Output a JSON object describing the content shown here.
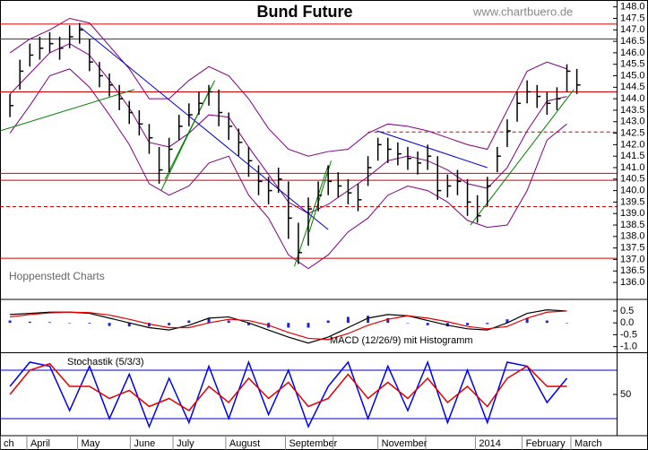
{
  "chart_data": [
    {
      "type": "hlc",
      "title": "Bund Future",
      "source": "www.chartbuero.de",
      "watermark": "Hoppenstedt Charts",
      "xlim": [
        -1,
        61
      ],
      "ylim": [
        135.3,
        148.3
      ],
      "color": "#000000",
      "x": [
        0,
        1,
        2,
        3,
        4,
        5,
        6,
        7,
        8,
        9,
        10,
        11,
        12,
        13,
        14,
        15,
        16,
        17,
        18,
        19,
        20,
        21,
        22,
        23,
        24,
        25,
        26,
        27,
        28,
        29,
        30,
        31,
        32,
        33,
        34,
        35,
        36,
        37,
        38,
        39,
        40,
        41,
        42,
        43,
        44,
        45,
        46,
        47,
        48,
        49,
        50,
        51,
        52,
        53,
        54,
        55,
        56,
        57
      ],
      "high": [
        144.2,
        145.7,
        146.4,
        146.7,
        146.9,
        146.7,
        147.2,
        147.3,
        146.6,
        145.6,
        145.1,
        144.6,
        143.9,
        143.5,
        142.9,
        141.9,
        142.3,
        143.3,
        143.8,
        144.3,
        144.6,
        144.4,
        143.4,
        142.7,
        141.9,
        141.1,
        140.6,
        141.0,
        140.4,
        138.6,
        139.7,
        140.4,
        141.1,
        140.8,
        140.5,
        140.3,
        141.5,
        142.3,
        142.3,
        142.1,
        141.9,
        141.7,
        142.0,
        141.5,
        140.7,
        140.9,
        140.5,
        139.8,
        140.6,
        141.9,
        143.1,
        144.3,
        144.8,
        144.6,
        144.3,
        144.5,
        145.5,
        145.3
      ],
      "low": [
        143.2,
        144.4,
        145.4,
        145.7,
        146.0,
        145.7,
        146.2,
        146.4,
        145.2,
        144.5,
        144.1,
        143.5,
        142.9,
        142.4,
        141.6,
        140.3,
        140.8,
        142.2,
        142.8,
        143.3,
        143.7,
        142.8,
        142.2,
        141.5,
        140.6,
        139.8,
        139.4,
        139.9,
        137.9,
        136.8,
        137.6,
        139.1,
        139.8,
        139.7,
        139.4,
        139.1,
        140.2,
        141.3,
        141.2,
        141.1,
        140.9,
        140.7,
        140.9,
        139.6,
        139.7,
        139.8,
        138.9,
        138.6,
        139.3,
        140.8,
        141.9,
        143.0,
        143.8,
        143.6,
        143.3,
        143.5,
        144.3,
        144.2
      ],
      "close": [
        143.7,
        145.2,
        145.9,
        146.2,
        146.4,
        146.2,
        146.7,
        147.0,
        145.6,
        145.0,
        144.6,
        144.0,
        143.4,
        142.9,
        142.3,
        140.9,
        141.8,
        142.8,
        143.3,
        143.8,
        144.3,
        143.4,
        142.8,
        142.1,
        141.3,
        140.4,
        140.0,
        140.5,
        138.8,
        137.3,
        139.2,
        139.8,
        140.4,
        140.2,
        139.9,
        139.6,
        141.0,
        142.0,
        141.8,
        141.6,
        141.4,
        141.2,
        141.5,
        140.0,
        140.2,
        140.4,
        139.5,
        138.9,
        140.2,
        141.5,
        142.6,
        143.8,
        144.3,
        144.1,
        143.8,
        144.0,
        145.2,
        144.6
      ],
      "bands": {
        "color": "#800080",
        "x": [
          0,
          2,
          4,
          6,
          8,
          10,
          12,
          14,
          16,
          18,
          20,
          22,
          24,
          26,
          28,
          30,
          32,
          34,
          36,
          38,
          40,
          42,
          44,
          46,
          48,
          50,
          52,
          54,
          56
        ],
        "upper": [
          146.0,
          146.6,
          147.0,
          147.5,
          147.3,
          146.3,
          145.3,
          144.0,
          144.0,
          144.8,
          145.4,
          145.0,
          144.0,
          142.7,
          141.8,
          141.5,
          141.7,
          141.8,
          142.5,
          142.9,
          142.8,
          142.6,
          142.3,
          142.0,
          141.8,
          143.5,
          145.2,
          145.6,
          145.3
        ],
        "middle": [
          144.2,
          145.1,
          146.0,
          146.4,
          145.9,
          144.8,
          143.6,
          142.1,
          141.9,
          142.5,
          143.3,
          143.2,
          141.9,
          140.7,
          139.5,
          139.0,
          139.4,
          140.0,
          140.6,
          141.3,
          141.5,
          141.3,
          140.9,
          140.3,
          140.1,
          141.0,
          142.6,
          143.9,
          144.1
        ],
        "lower": [
          142.5,
          143.7,
          145.0,
          145.3,
          144.5,
          143.3,
          142.0,
          140.3,
          139.8,
          140.2,
          141.2,
          141.5,
          139.8,
          138.8,
          137.2,
          136.6,
          137.2,
          138.2,
          138.8,
          139.8,
          140.2,
          140.0,
          139.5,
          138.7,
          138.4,
          138.5,
          140.0,
          142.2,
          142.9
        ]
      },
      "hlines": {
        "color": "#d00000",
        "solid": [
          147.25,
          146.6,
          144.3,
          140.75,
          140.45,
          137.05
        ],
        "dashed": [
          {
            "value": 142.55,
            "x": [
              36,
              61
            ]
          },
          {
            "value": 139.3,
            "x": [
              -1,
              61
            ]
          }
        ]
      },
      "trendlines": [
        {
          "color": "#0000cc",
          "x": [
            7.1,
            32.0
          ],
          "y": [
            147.1,
            138.3
          ]
        },
        {
          "color": "#0000cc",
          "x": [
            36.9,
            48.0
          ],
          "y": [
            142.6,
            141.0
          ]
        },
        {
          "color": "#008000",
          "x": [
            -1,
            12.5
          ],
          "y": [
            142.6,
            144.4
          ]
        },
        {
          "color": "#008000",
          "x": [
            15.2,
            20.2
          ],
          "y": [
            140.0,
            144.5
          ]
        },
        {
          "color": "#008000",
          "x": [
            15.6,
            20.6
          ],
          "y": [
            140.5,
            144.8
          ]
        },
        {
          "color": "#008000",
          "x": [
            28.6,
            32.0
          ],
          "y": [
            136.7,
            141.1
          ]
        },
        {
          "color": "#008000",
          "x": [
            30.1,
            32.3
          ],
          "y": [
            138.2,
            141.3
          ]
        },
        {
          "color": "#008000",
          "x": [
            46.3,
            56.7
          ],
          "y": [
            138.5,
            144.4
          ]
        }
      ],
      "yticks": [
        {
          "value": 136,
          "label": "136.0"
        },
        {
          "value": 136.5,
          "label": "136.5"
        },
        {
          "value": 137,
          "label": "137.0"
        },
        {
          "value": 137.5,
          "label": "137.5"
        },
        {
          "value": 138,
          "label": "138.0"
        },
        {
          "value": 138.5,
          "label": "138.5"
        },
        {
          "value": 139,
          "label": "139.0"
        },
        {
          "value": 139.5,
          "label": "139.5"
        },
        {
          "value": 140,
          "label": "140.0"
        },
        {
          "value": 140.5,
          "label": "140.5"
        },
        {
          "value": 141,
          "label": "141.0"
        },
        {
          "value": 141.5,
          "label": "141.5"
        },
        {
          "value": 142,
          "label": "142.0"
        },
        {
          "value": 142.5,
          "label": "142.5"
        },
        {
          "value": 143,
          "label": "143.0"
        },
        {
          "value": 143.5,
          "label": "143.5"
        },
        {
          "value": 144,
          "label": "144.0"
        },
        {
          "value": 144.5,
          "label": "144.5"
        },
        {
          "value": 145,
          "label": "145.0"
        },
        {
          "value": 145.5,
          "label": "145.5"
        },
        {
          "value": 146,
          "label": "146.0"
        },
        {
          "value": 146.5,
          "label": "146.5"
        },
        {
          "value": 147,
          "label": "147.0"
        },
        {
          "value": 147.5,
          "label": "147.5"
        },
        {
          "value": 148,
          "label": "148.0"
        }
      ]
    },
    {
      "type": "macd",
      "title": "MACD (12/26/9) mit Histogramm",
      "xlim": [
        -1,
        61
      ],
      "ylim": [
        -1.2,
        0.95
      ],
      "x": [
        0,
        2,
        4,
        6,
        8,
        10,
        12,
        14,
        16,
        18,
        20,
        22,
        24,
        26,
        28,
        30,
        32,
        34,
        36,
        38,
        40,
        42,
        44,
        46,
        48,
        50,
        52,
        54,
        56
      ],
      "series": [
        {
          "color": "#000000",
          "values": [
            0.35,
            0.4,
            0.45,
            0.45,
            0.4,
            0.2,
            0.0,
            -0.2,
            -0.3,
            -0.1,
            0.2,
            0.25,
            0.0,
            -0.3,
            -0.6,
            -0.85,
            -0.6,
            -0.2,
            0.2,
            0.35,
            0.3,
            0.1,
            -0.1,
            -0.25,
            -0.3,
            0.0,
            0.4,
            0.55,
            0.5
          ]
        },
        {
          "color": "#e00000",
          "values": [
            0.25,
            0.35,
            0.42,
            0.45,
            0.43,
            0.33,
            0.15,
            -0.05,
            -0.2,
            -0.2,
            0.0,
            0.15,
            0.1,
            -0.1,
            -0.4,
            -0.65,
            -0.7,
            -0.45,
            -0.1,
            0.15,
            0.3,
            0.2,
            0.05,
            -0.15,
            -0.25,
            -0.15,
            0.2,
            0.45,
            0.5
          ]
        }
      ],
      "histogram": {
        "color": "#2222cc",
        "values": [
          0.1,
          0.05,
          0.03,
          0,
          -0.03,
          -0.13,
          -0.15,
          -0.15,
          -0.1,
          0.1,
          0.2,
          0.1,
          -0.1,
          -0.2,
          -0.2,
          -0.2,
          0.1,
          0.25,
          0.3,
          0.2,
          0,
          -0.1,
          -0.15,
          -0.1,
          -0.05,
          0.15,
          0.2,
          0.1,
          0
        ]
      },
      "yticks": [
        0.5,
        {
          "value": 0,
          "label": "0.0"
        },
        -0.5,
        {
          "value": -1,
          "label": "-1.0"
        }
      ]
    },
    {
      "type": "stoch",
      "title": "Stochastik (5/3/3)",
      "xlim": [
        -1,
        61
      ],
      "ylim": [
        0,
        100
      ],
      "x": [
        0,
        2,
        4,
        6,
        8,
        10,
        12,
        14,
        16,
        18,
        20,
        22,
        24,
        26,
        28,
        30,
        32,
        34,
        36,
        38,
        40,
        42,
        44,
        46,
        48,
        50,
        52,
        54,
        56
      ],
      "series": [
        {
          "color": "#0000ee",
          "values": [
            60,
            90,
            85,
            30,
            85,
            20,
            75,
            10,
            70,
            15,
            85,
            20,
            90,
            25,
            80,
            10,
            60,
            90,
            20,
            85,
            30,
            90,
            15,
            80,
            15,
            90,
            85,
            40,
            70
          ]
        },
        {
          "color": "#e00000",
          "values": [
            50,
            80,
            88,
            60,
            60,
            45,
            55,
            35,
            45,
            30,
            60,
            40,
            70,
            45,
            65,
            35,
            45,
            75,
            45,
            65,
            45,
            70,
            40,
            60,
            35,
            70,
            85,
            60,
            60
          ]
        }
      ],
      "levels": {
        "color": "#0000cc",
        "values": [
          80,
          20
        ]
      },
      "yticks": [
        50
      ],
      "xticks": [
        {
          "value": -1,
          "label": "ch"
        },
        {
          "value": 1.7,
          "label": "April"
        },
        {
          "value": 6.8,
          "label": "May"
        },
        {
          "value": 12.1,
          "label": "June"
        },
        {
          "value": 16.4,
          "label": "July"
        },
        {
          "value": 21.7,
          "label": "August"
        },
        {
          "value": 27.7,
          "label": "September"
        },
        {
          "value": 32.5,
          "label": null
        },
        {
          "value": 37.0,
          "label": "November"
        },
        {
          "value": 41.8,
          "label": null
        },
        {
          "value": 46.8,
          "label": "2014"
        },
        {
          "value": 51.5,
          "label": "February"
        },
        {
          "value": 56.4,
          "label": "March"
        }
      ]
    }
  ]
}
